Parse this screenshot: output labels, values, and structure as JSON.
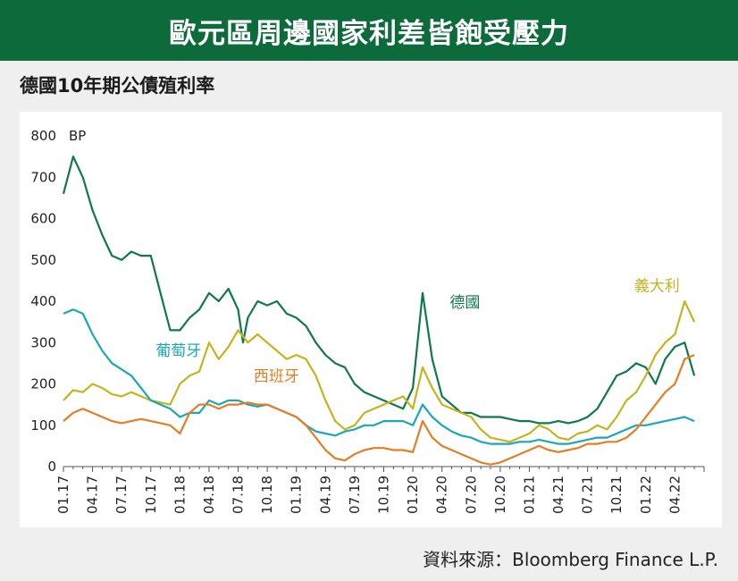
{
  "header": {
    "title": "歐元區周邊國家利差皆飽受壓力"
  },
  "subtitle": "德國10年期公債殖利率",
  "source": "資料來源：Bloomberg Finance L.P.",
  "chart_data": {
    "type": "line",
    "title": "德國10年期公債殖利率",
    "unit_label": "BP",
    "ylim": [
      0,
      800
    ],
    "yticks": [
      0,
      100,
      200,
      300,
      400,
      500,
      600,
      700,
      800
    ],
    "xlim": [
      0,
      66
    ],
    "xtick_labels": [
      "01.17",
      "04.17",
      "07.17",
      "10.17",
      "01.18",
      "04.18",
      "07.18",
      "10.18",
      "01.19",
      "04.19",
      "07.19",
      "10.19",
      "01.20",
      "04.20",
      "07.20",
      "10.20",
      "01.21",
      "04.21",
      "07.21",
      "10.21",
      "01.22",
      "04.22"
    ],
    "grid": false,
    "series": [
      {
        "name": "德國",
        "color": "#0e7a4a",
        "x": [
          0,
          1,
          2,
          3,
          4,
          5,
          6,
          7,
          8,
          9,
          10,
          11,
          12,
          13,
          14,
          15,
          16,
          17,
          18,
          18.5,
          19,
          20,
          21,
          22,
          23,
          24,
          25,
          26,
          27,
          28,
          29,
          30,
          31,
          32,
          33,
          34,
          35,
          36,
          37,
          38,
          39,
          40,
          40.5,
          41,
          42,
          43,
          44,
          45,
          46,
          47,
          48,
          49,
          50,
          51,
          52,
          53,
          54,
          55,
          56,
          57,
          58,
          59,
          60,
          61,
          62,
          63,
          64,
          65
        ],
        "values": [
          660,
          750,
          700,
          620,
          560,
          510,
          500,
          520,
          510,
          510,
          420,
          330,
          330,
          360,
          380,
          420,
          400,
          430,
          380,
          300,
          360,
          400,
          390,
          400,
          370,
          360,
          340,
          300,
          270,
          250,
          240,
          200,
          180,
          170,
          160,
          150,
          140,
          190,
          420,
          260,
          170,
          150,
          140,
          130,
          130,
          120,
          120,
          120,
          115,
          110,
          110,
          105,
          105,
          110,
          105,
          110,
          120,
          140,
          180,
          220,
          230,
          250,
          240,
          200,
          260,
          290,
          300,
          220
        ],
        "label": {
          "text": "德國",
          "x": 39.8,
          "y": 385
        }
      },
      {
        "name": "義大利",
        "color": "#c6b41f",
        "x": [
          0,
          1,
          2,
          3,
          4,
          5,
          6,
          7,
          8,
          9,
          10,
          11,
          12,
          13,
          14,
          15,
          16,
          17,
          18,
          19,
          20,
          21,
          22,
          23,
          24,
          25,
          26,
          27,
          28,
          29,
          30,
          31,
          32,
          33,
          34,
          35,
          36,
          37,
          38,
          39,
          40,
          41,
          42,
          43,
          44,
          45,
          46,
          47,
          48,
          49,
          50,
          51,
          52,
          53,
          54,
          55,
          56,
          57,
          58,
          59,
          60,
          61,
          62,
          63,
          64,
          65
        ],
        "values": [
          160,
          185,
          180,
          200,
          190,
          175,
          170,
          180,
          170,
          160,
          155,
          150,
          200,
          220,
          230,
          300,
          260,
          290,
          330,
          300,
          320,
          300,
          280,
          260,
          270,
          260,
          220,
          160,
          110,
          90,
          100,
          130,
          140,
          150,
          160,
          170,
          140,
          240,
          190,
          150,
          140,
          130,
          120,
          90,
          70,
          65,
          60,
          70,
          80,
          100,
          90,
          70,
          65,
          80,
          85,
          100,
          90,
          120,
          160,
          180,
          220,
          270,
          300,
          320,
          400,
          350
        ],
        "label": {
          "text": "義大利",
          "x": 58.8,
          "y": 425
        }
      },
      {
        "name": "葡萄牙",
        "color": "#1aa9b4",
        "x": [
          0,
          1,
          2,
          3,
          4,
          5,
          6,
          7,
          8,
          9,
          10,
          11,
          12,
          13,
          14,
          15,
          16,
          17,
          18,
          19,
          20,
          21,
          22,
          23,
          24,
          25,
          26,
          27,
          28,
          29,
          30,
          31,
          32,
          33,
          34,
          35,
          36,
          37,
          38,
          39,
          40,
          41,
          42,
          43,
          44,
          45,
          46,
          47,
          48,
          49,
          50,
          51,
          52,
          53,
          54,
          55,
          56,
          57,
          58,
          59,
          60,
          61,
          62,
          63,
          64,
          65
        ],
        "values": [
          370,
          380,
          370,
          320,
          280,
          250,
          235,
          220,
          190,
          160,
          150,
          140,
          120,
          130,
          130,
          160,
          150,
          160,
          160,
          150,
          145,
          150,
          140,
          130,
          120,
          100,
          85,
          80,
          75,
          85,
          90,
          100,
          100,
          110,
          110,
          110,
          100,
          150,
          120,
          100,
          85,
          75,
          70,
          60,
          55,
          55,
          55,
          60,
          60,
          65,
          60,
          55,
          55,
          60,
          65,
          70,
          70,
          80,
          90,
          100,
          100,
          105,
          110,
          115,
          120,
          110
        ],
        "label": {
          "text": "葡萄牙",
          "x": 9.5,
          "y": 268
        }
      },
      {
        "name": "西班牙",
        "color": "#e57e22",
        "x": [
          0,
          1,
          2,
          3,
          4,
          5,
          6,
          7,
          8,
          9,
          10,
          11,
          12,
          13,
          14,
          15,
          16,
          17,
          18,
          19,
          20,
          21,
          22,
          23,
          24,
          25,
          26,
          27,
          28,
          29,
          30,
          31,
          32,
          33,
          34,
          35,
          36,
          37,
          38,
          39,
          40,
          41,
          42,
          43,
          44,
          45,
          46,
          47,
          48,
          49,
          50,
          51,
          52,
          53,
          54,
          55,
          56,
          57,
          58,
          59,
          60,
          61,
          62,
          63,
          64,
          65
        ],
        "values": [
          110,
          130,
          140,
          130,
          120,
          110,
          105,
          110,
          115,
          110,
          105,
          100,
          80,
          130,
          150,
          150,
          140,
          150,
          150,
          155,
          150,
          150,
          140,
          130,
          120,
          100,
          70,
          40,
          20,
          15,
          30,
          40,
          45,
          45,
          40,
          40,
          35,
          110,
          70,
          50,
          40,
          30,
          20,
          10,
          5,
          10,
          20,
          30,
          40,
          50,
          40,
          35,
          40,
          45,
          55,
          55,
          60,
          60,
          70,
          90,
          120,
          150,
          180,
          200,
          260,
          270
        ],
        "label": {
          "text": "西班牙",
          "x": 19.6,
          "y": 206
        }
      }
    ]
  }
}
